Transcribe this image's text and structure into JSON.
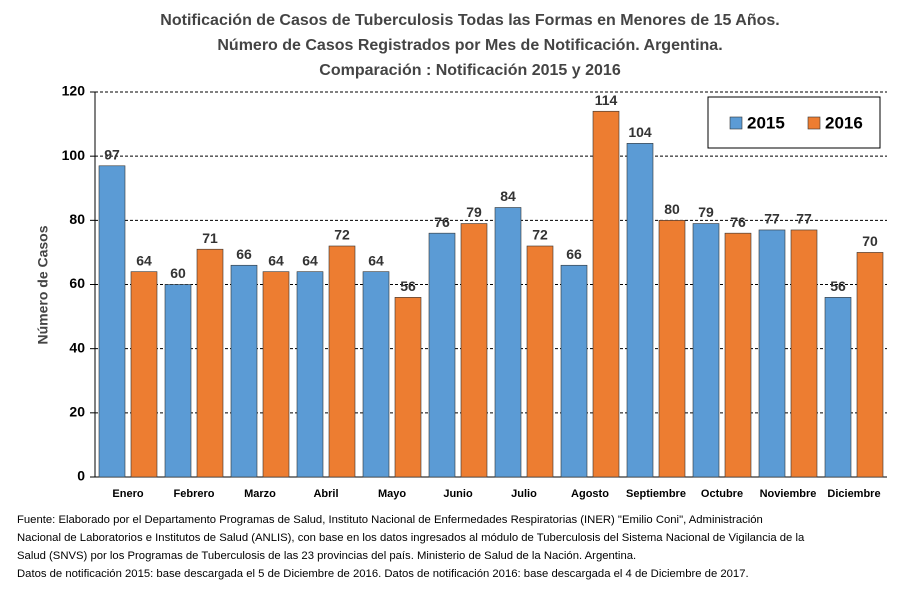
{
  "chart_data": {
    "type": "bar",
    "title": [
      "Notificación de Casos de Tuberculosis Todas las Formas en Menores de 15 Años.",
      "Número de Casos Registrados por Mes de Notificación. Argentina.",
      "Comparación : Notificación 2015 y 2016"
    ],
    "ylabel": "Número de Casos",
    "categories": [
      "Enero",
      "Febrero",
      "Marzo",
      "Abril",
      "Mayo",
      "Junio",
      "Julio",
      "Agosto",
      "Septiembre",
      "Octubre",
      "Noviembre",
      "Diciembre"
    ],
    "series": [
      {
        "name": "2015",
        "color": "#5b9bd5",
        "values": [
          97,
          60,
          66,
          64,
          64,
          76,
          84,
          66,
          104,
          79,
          77,
          56
        ]
      },
      {
        "name": "2016",
        "color": "#ed7d31",
        "values": [
          64,
          71,
          64,
          72,
          56,
          79,
          72,
          114,
          80,
          76,
          77,
          70
        ]
      }
    ],
    "ylim": [
      0,
      120
    ],
    "yticks": [
      0,
      20,
      40,
      60,
      80,
      100,
      120
    ],
    "grid": true,
    "legend": "top-right",
    "footnote": [
      "Fuente: Elaborado por el Departamento Programas de Salud, Instituto Nacional de Enfermedades Respiratorias (INER) \"Emilio Coni\", Administración",
      "Nacional de Laboratorios e Institutos de Salud (ANLIS), con base en los datos ingresados al módulo de Tuberculosis del Sistema Nacional de Vigilancia de la",
      "Salud (SNVS) por los Programas de Tuberculosis de las 23 provincias del país. Ministerio de Salud de la Nación. Argentina.",
      "Datos de notificación 2015: base descargada el 5 de Diciembre de 2016. Datos de notificación 2016:  base descargada el 4 de Diciembre de 2017."
    ]
  }
}
